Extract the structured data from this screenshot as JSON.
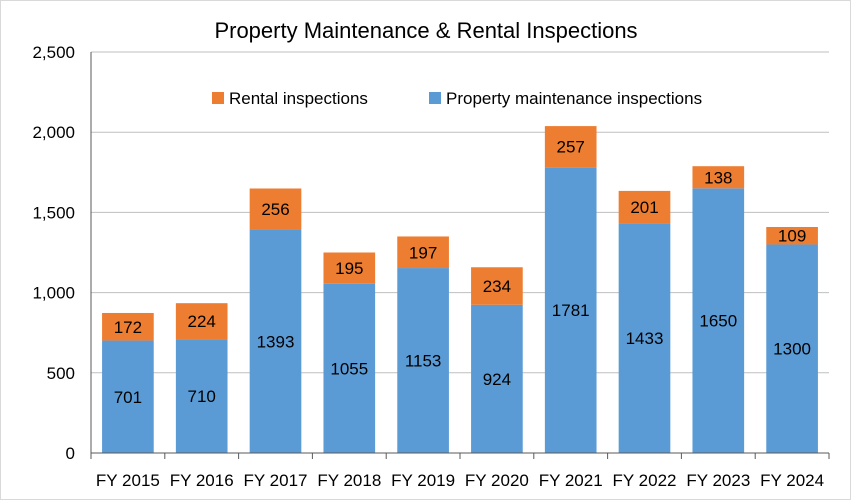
{
  "colors": {
    "rental": "#ED7D31",
    "maintenance": "#5B9BD5",
    "grid": "#bfbfbf",
    "axis": "#595959",
    "border": "#d9d9d9"
  },
  "chart_data": {
    "type": "bar",
    "stacked": true,
    "title": "Property Maintenance & Rental Inspections",
    "xlabel": "",
    "ylabel": "",
    "ylim": [
      0,
      2500
    ],
    "y_ticks": [
      0,
      500,
      1000,
      1500,
      2000,
      2500
    ],
    "y_tick_labels": [
      "0",
      "500",
      "1,000",
      "1,500",
      "2,000",
      "2,500"
    ],
    "grid": true,
    "legend_position": "top",
    "categories": [
      "FY 2015",
      "FY 2016",
      "FY 2017",
      "FY 2018",
      "FY 2019",
      "FY 2020",
      "FY 2021",
      "FY 2022",
      "FY 2023",
      "FY 2024"
    ],
    "series": [
      {
        "name": "Property maintenance inspections",
        "color": "#5B9BD5",
        "values": [
          701,
          710,
          1393,
          1055,
          1153,
          924,
          1781,
          1433,
          1650,
          1300
        ]
      },
      {
        "name": "Rental inspections",
        "color": "#ED7D31",
        "values": [
          172,
          224,
          256,
          195,
          197,
          234,
          257,
          201,
          138,
          109
        ]
      }
    ],
    "legend_order": [
      1,
      0
    ]
  }
}
